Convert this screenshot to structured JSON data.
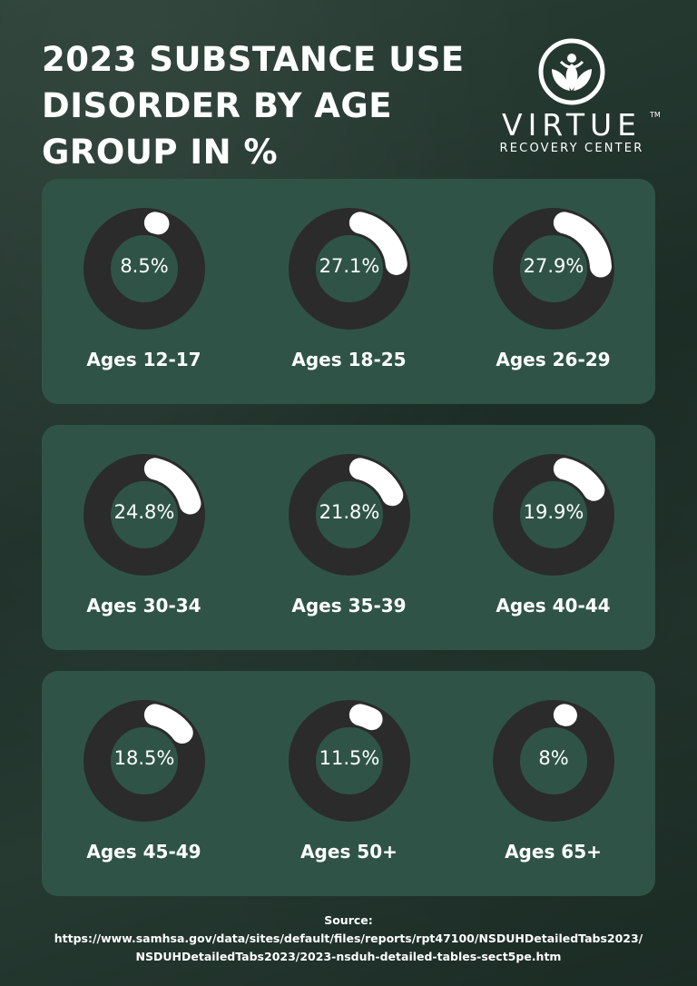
{
  "title_lines": [
    "2023 SUBSTANCE USE",
    "DISORDER BY AGE",
    "GROUP IN %"
  ],
  "brand": {
    "name": "VIRTUE",
    "trademark": "TM",
    "subtitle": "RECOVERY CENTER",
    "icon": "lotus-person-icon"
  },
  "colors": {
    "background": "#23372f",
    "panel": "#2f5447",
    "ring_track": "#2b2b2b",
    "ring_fill": "#ffffff",
    "text": "#ffffff"
  },
  "chart_data": {
    "type": "pie",
    "title": "2023 SUBSTANCE USE DISORDER BY AGE GROUP IN %",
    "categories": [
      "Ages 12-17",
      "Ages 18-25",
      "Ages 26-29",
      "Ages 30-34",
      "Ages 35-39",
      "Ages 40-44",
      "Ages 45-49",
      "Ages 50+",
      "Ages 65+"
    ],
    "values": [
      8.5,
      27.1,
      27.9,
      24.8,
      21.8,
      19.9,
      18.5,
      11.5,
      8
    ],
    "value_labels": [
      "8.5%",
      "27.1%",
      "27.9%",
      "24.8%",
      "21.8%",
      "19.9%",
      "18.5%",
      "11.5%",
      "8%"
    ],
    "unit": "%"
  },
  "source": {
    "label": "Source:",
    "lines": [
      "https://www.samhsa.gov/data/sites/default/files/reports/rpt47100/NSDUHDetailedTabs2023/",
      "NSDUHDetailedTabs2023/2023-nsduh-detailed-tables-sect5pe.htm"
    ]
  }
}
